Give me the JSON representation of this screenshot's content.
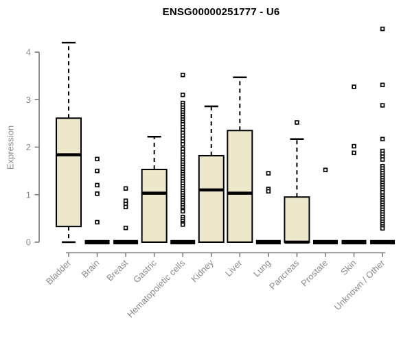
{
  "chart_data": {
    "type": "boxplot",
    "title": "ENSG00000251777 - U6",
    "xlabel": "",
    "ylabel": "Expression",
    "ylim": [
      0,
      4.6
    ],
    "y_ticks": [
      0,
      1,
      2,
      3,
      4
    ],
    "grid": false,
    "legend": false,
    "box_fill_color": "#EDE7CB",
    "box_line_color": "#000000",
    "axis_line_color": "#7a7a7a",
    "axis_text_color": "#8a8a8a",
    "categories": [
      "Bladder",
      "Brain",
      "Breast",
      "Gastric",
      "Hematopoietic cells",
      "Kidney",
      "Liver",
      "Lung",
      "Pancreas",
      "Prostate",
      "Skin",
      "Unknown / Other"
    ],
    "series": [
      {
        "name": "Bladder",
        "q1": 0.33,
        "median": 1.84,
        "q3": 2.61,
        "whisker_low": 0,
        "whisker_high": 4.2,
        "outliers": []
      },
      {
        "name": "Brain",
        "q1": 0,
        "median": 0,
        "q3": 0,
        "whisker_low": 0,
        "whisker_high": 0,
        "outliers": [
          1.75,
          1.5,
          1.2,
          1.02,
          0.42
        ]
      },
      {
        "name": "Breast",
        "q1": 0,
        "median": 0,
        "q3": 0,
        "whisker_low": 0,
        "whisker_high": 0,
        "outliers": [
          1.13,
          0.87,
          0.8,
          0.74,
          0.3
        ]
      },
      {
        "name": "Gastric",
        "q1": 0,
        "median": 1.03,
        "q3": 1.53,
        "whisker_low": 0,
        "whisker_high": 2.22,
        "outliers": []
      },
      {
        "name": "Hematopoietic cells",
        "q1": 0,
        "median": 0,
        "q3": 0,
        "whisker_low": 0,
        "whisker_high": 0,
        "outliers": [
          3.52,
          3.1,
          2.93,
          2.88,
          2.83,
          2.78,
          2.73,
          2.68,
          2.63,
          2.58,
          2.53,
          2.48,
          2.42,
          2.36,
          2.3,
          2.24,
          2.18,
          2.12,
          2.06,
          1.96,
          1.9,
          1.84,
          1.78,
          1.72,
          1.68,
          1.63,
          1.58,
          1.53,
          1.48,
          1.43,
          1.38,
          1.33,
          1.28,
          1.23,
          1.18,
          1.13,
          1.08,
          1.03,
          0.98,
          0.93,
          0.88,
          0.83,
          0.78,
          0.73,
          0.68,
          0.65,
          0.53,
          0.48,
          0.44,
          0.4,
          0.37
        ]
      },
      {
        "name": "Kidney",
        "q1": 0,
        "median": 1.1,
        "q3": 1.82,
        "whisker_low": 0,
        "whisker_high": 2.86,
        "outliers": []
      },
      {
        "name": "Liver",
        "q1": 0,
        "median": 1.03,
        "q3": 2.35,
        "whisker_low": 0,
        "whisker_high": 3.47,
        "outliers": []
      },
      {
        "name": "Lung",
        "q1": 0,
        "median": 0,
        "q3": 0,
        "whisker_low": 0,
        "whisker_high": 0,
        "outliers": [
          1.45,
          1.12,
          1.07
        ]
      },
      {
        "name": "Pancreas",
        "q1": 0,
        "median": 0,
        "q3": 0.95,
        "whisker_low": 0,
        "whisker_high": 2.17,
        "outliers": [
          2.52
        ]
      },
      {
        "name": "Prostate",
        "q1": 0,
        "median": 0,
        "q3": 0,
        "whisker_low": 0,
        "whisker_high": 0,
        "outliers": [
          1.52
        ]
      },
      {
        "name": "Skin",
        "q1": 0,
        "median": 0,
        "q3": 0,
        "whisker_low": 0,
        "whisker_high": 0,
        "outliers": [
          3.27,
          2.02,
          1.88
        ]
      },
      {
        "name": "Unknown / Other",
        "q1": 0,
        "median": 0,
        "q3": 0,
        "whisker_low": 0,
        "whisker_high": 0,
        "outliers": [
          4.49,
          3.31,
          2.88,
          2.17,
          1.92,
          1.86,
          1.8,
          1.74,
          1.6,
          1.55,
          1.5,
          1.45,
          1.4,
          1.35,
          1.3,
          1.25,
          1.2,
          1.15,
          1.1,
          1.05,
          0.98,
          0.93,
          0.88,
          0.83,
          0.78,
          0.73,
          0.68,
          0.63,
          0.58,
          0.53,
          0.48,
          0.43,
          0.38,
          0.33,
          0.29
        ]
      }
    ]
  }
}
